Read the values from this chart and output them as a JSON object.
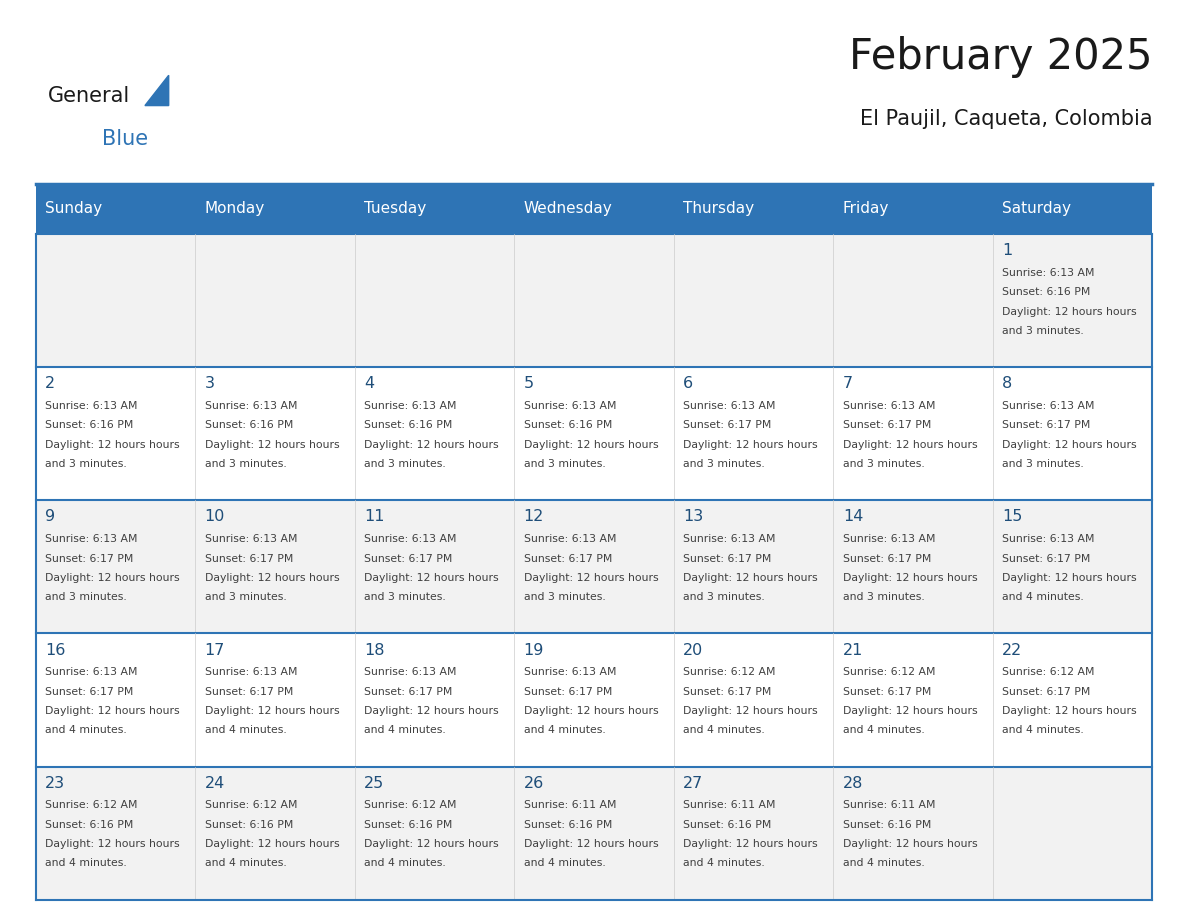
{
  "title": "February 2025",
  "subtitle": "El Paujil, Caqueta, Colombia",
  "header_bg_color": "#2E74B5",
  "header_text_color": "#FFFFFF",
  "day_names": [
    "Sunday",
    "Monday",
    "Tuesday",
    "Wednesday",
    "Thursday",
    "Friday",
    "Saturday"
  ],
  "background_color": "#FFFFFF",
  "cell_bg_even": "#F2F2F2",
  "cell_bg_odd": "#FFFFFF",
  "grid_color": "#2E74B5",
  "day_number_color": "#1F4E79",
  "info_text_color": "#404040",
  "calendar_data": [
    [
      null,
      null,
      null,
      null,
      null,
      null,
      {
        "day": 1,
        "sunrise": "6:13 AM",
        "sunset": "6:16 PM",
        "daylight": "12 hours and 3 minutes."
      }
    ],
    [
      {
        "day": 2,
        "sunrise": "6:13 AM",
        "sunset": "6:16 PM",
        "daylight": "12 hours and 3 minutes."
      },
      {
        "day": 3,
        "sunrise": "6:13 AM",
        "sunset": "6:16 PM",
        "daylight": "12 hours and 3 minutes."
      },
      {
        "day": 4,
        "sunrise": "6:13 AM",
        "sunset": "6:16 PM",
        "daylight": "12 hours and 3 minutes."
      },
      {
        "day": 5,
        "sunrise": "6:13 AM",
        "sunset": "6:16 PM",
        "daylight": "12 hours and 3 minutes."
      },
      {
        "day": 6,
        "sunrise": "6:13 AM",
        "sunset": "6:17 PM",
        "daylight": "12 hours and 3 minutes."
      },
      {
        "day": 7,
        "sunrise": "6:13 AM",
        "sunset": "6:17 PM",
        "daylight": "12 hours and 3 minutes."
      },
      {
        "day": 8,
        "sunrise": "6:13 AM",
        "sunset": "6:17 PM",
        "daylight": "12 hours and 3 minutes."
      }
    ],
    [
      {
        "day": 9,
        "sunrise": "6:13 AM",
        "sunset": "6:17 PM",
        "daylight": "12 hours and 3 minutes."
      },
      {
        "day": 10,
        "sunrise": "6:13 AM",
        "sunset": "6:17 PM",
        "daylight": "12 hours and 3 minutes."
      },
      {
        "day": 11,
        "sunrise": "6:13 AM",
        "sunset": "6:17 PM",
        "daylight": "12 hours and 3 minutes."
      },
      {
        "day": 12,
        "sunrise": "6:13 AM",
        "sunset": "6:17 PM",
        "daylight": "12 hours and 3 minutes."
      },
      {
        "day": 13,
        "sunrise": "6:13 AM",
        "sunset": "6:17 PM",
        "daylight": "12 hours and 3 minutes."
      },
      {
        "day": 14,
        "sunrise": "6:13 AM",
        "sunset": "6:17 PM",
        "daylight": "12 hours and 3 minutes."
      },
      {
        "day": 15,
        "sunrise": "6:13 AM",
        "sunset": "6:17 PM",
        "daylight": "12 hours and 4 minutes."
      }
    ],
    [
      {
        "day": 16,
        "sunrise": "6:13 AM",
        "sunset": "6:17 PM",
        "daylight": "12 hours and 4 minutes."
      },
      {
        "day": 17,
        "sunrise": "6:13 AM",
        "sunset": "6:17 PM",
        "daylight": "12 hours and 4 minutes."
      },
      {
        "day": 18,
        "sunrise": "6:13 AM",
        "sunset": "6:17 PM",
        "daylight": "12 hours and 4 minutes."
      },
      {
        "day": 19,
        "sunrise": "6:13 AM",
        "sunset": "6:17 PM",
        "daylight": "12 hours and 4 minutes."
      },
      {
        "day": 20,
        "sunrise": "6:12 AM",
        "sunset": "6:17 PM",
        "daylight": "12 hours and 4 minutes."
      },
      {
        "day": 21,
        "sunrise": "6:12 AM",
        "sunset": "6:17 PM",
        "daylight": "12 hours and 4 minutes."
      },
      {
        "day": 22,
        "sunrise": "6:12 AM",
        "sunset": "6:17 PM",
        "daylight": "12 hours and 4 minutes."
      }
    ],
    [
      {
        "day": 23,
        "sunrise": "6:12 AM",
        "sunset": "6:16 PM",
        "daylight": "12 hours and 4 minutes."
      },
      {
        "day": 24,
        "sunrise": "6:12 AM",
        "sunset": "6:16 PM",
        "daylight": "12 hours and 4 minutes."
      },
      {
        "day": 25,
        "sunrise": "6:12 AM",
        "sunset": "6:16 PM",
        "daylight": "12 hours and 4 minutes."
      },
      {
        "day": 26,
        "sunrise": "6:11 AM",
        "sunset": "6:16 PM",
        "daylight": "12 hours and 4 minutes."
      },
      {
        "day": 27,
        "sunrise": "6:11 AM",
        "sunset": "6:16 PM",
        "daylight": "12 hours and 4 minutes."
      },
      {
        "day": 28,
        "sunrise": "6:11 AM",
        "sunset": "6:16 PM",
        "daylight": "12 hours and 4 minutes."
      },
      null
    ]
  ],
  "logo_text1": "General",
  "logo_text2": "Blue",
  "logo_color1": "#1a1a1a",
  "logo_color2": "#2E74B5",
  "logo_triangle_color": "#2E74B5",
  "title_color": "#1a1a1a",
  "subtitle_color": "#1a1a1a"
}
